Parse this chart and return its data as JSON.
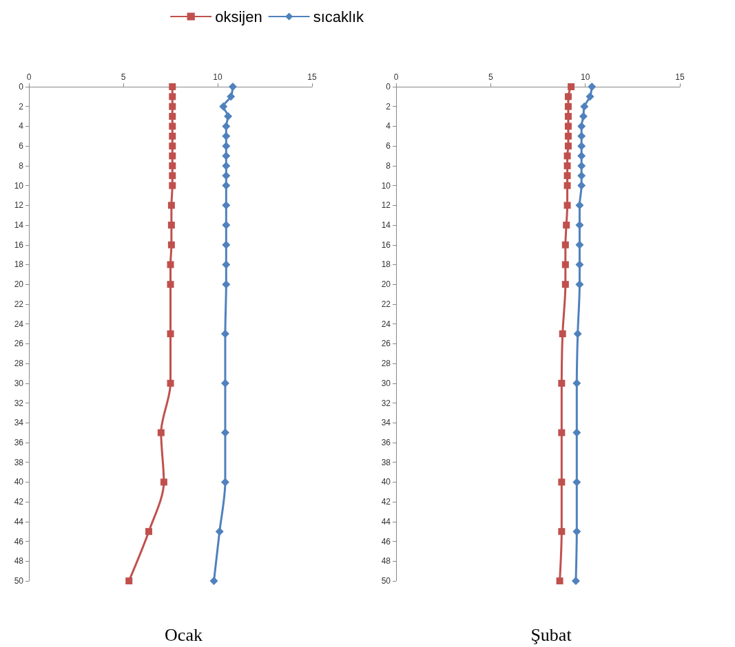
{
  "chart_data": [
    {
      "type": "line",
      "title": "Ocak",
      "legend": "top right",
      "orientation": "horizontal",
      "x": [
        0,
        1,
        2,
        3,
        4,
        5,
        6,
        7,
        8,
        9,
        10,
        12,
        14,
        16,
        18,
        20,
        25,
        30,
        35,
        40,
        45,
        50
      ],
      "xlim": [
        0,
        15
      ],
      "xticks": [
        0,
        5,
        10,
        15
      ],
      "ylim": [
        50,
        0
      ],
      "yticks": [
        0,
        2,
        4,
        6,
        8,
        10,
        12,
        14,
        16,
        18,
        20,
        22,
        24,
        26,
        28,
        30,
        32,
        34,
        36,
        38,
        40,
        42,
        44,
        46,
        48,
        50
      ],
      "series": [
        {
          "name": "oksijen",
          "color": "#c0504d",
          "marker": "square",
          "values": [
            7.6,
            7.6,
            7.6,
            7.6,
            7.6,
            7.6,
            7.6,
            7.6,
            7.6,
            7.6,
            7.6,
            7.55,
            7.55,
            7.55,
            7.5,
            7.5,
            7.5,
            7.5,
            7.0,
            7.15,
            6.35,
            5.3
          ]
        },
        {
          "name": "sıcaklık",
          "color": "#4f81bd",
          "marker": "diamond",
          "values": [
            10.8,
            10.7,
            10.3,
            10.55,
            10.45,
            10.45,
            10.45,
            10.45,
            10.45,
            10.45,
            10.45,
            10.45,
            10.45,
            10.45,
            10.45,
            10.45,
            10.4,
            10.4,
            10.4,
            10.4,
            10.1,
            9.8
          ]
        }
      ]
    },
    {
      "type": "line",
      "title": "Şubat",
      "orientation": "horizontal",
      "x": [
        0,
        1,
        2,
        3,
        4,
        5,
        6,
        7,
        8,
        9,
        10,
        12,
        14,
        16,
        18,
        20,
        25,
        30,
        35,
        40,
        45,
        50
      ],
      "xlim": [
        0,
        15
      ],
      "xticks": [
        0,
        5,
        10,
        15
      ],
      "ylim": [
        50,
        0
      ],
      "yticks": [
        0,
        2,
        4,
        6,
        8,
        10,
        12,
        14,
        16,
        18,
        20,
        22,
        24,
        26,
        28,
        30,
        32,
        34,
        36,
        38,
        40,
        42,
        44,
        46,
        48,
        50
      ],
      "series": [
        {
          "color": "#c0504d",
          "marker": "square",
          "values": [
            9.25,
            9.1,
            9.1,
            9.1,
            9.1,
            9.1,
            9.1,
            9.05,
            9.05,
            9.05,
            9.05,
            9.05,
            9.0,
            8.95,
            8.95,
            8.95,
            8.8,
            8.75,
            8.75,
            8.75,
            8.75,
            8.65
          ]
        },
        {
          "color": "#4f81bd",
          "marker": "diamond",
          "values": [
            10.35,
            10.25,
            9.95,
            9.9,
            9.8,
            9.8,
            9.8,
            9.8,
            9.8,
            9.8,
            9.8,
            9.7,
            9.7,
            9.7,
            9.7,
            9.7,
            9.6,
            9.55,
            9.55,
            9.55,
            9.55,
            9.5
          ]
        }
      ]
    }
  ]
}
